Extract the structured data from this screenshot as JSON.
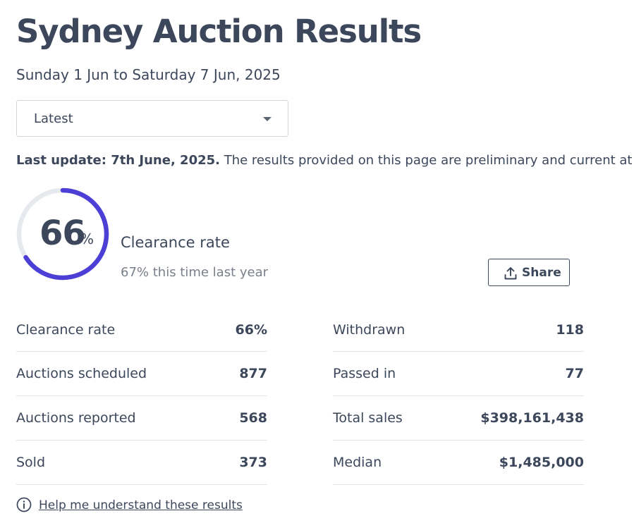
{
  "header": {
    "title": "Sydney Auction Results",
    "date_range": "Sunday 1 Jun to Saturday 7 Jun, 2025"
  },
  "period_select": {
    "selected": "Latest"
  },
  "update": {
    "bold_text": "Last update: 7th June, 2025.",
    "text": " The results provided on this page are preliminary and current at th"
  },
  "summary": {
    "clearance_value": "66",
    "clearance_unit": "%",
    "clearance_fraction": 0.66,
    "clearance_label": "Clearance rate",
    "last_year_text": "67% this time last year",
    "share_label": "Share"
  },
  "stats_left": [
    {
      "label": "Clearance rate",
      "value": "66%"
    },
    {
      "label": "Auctions scheduled",
      "value": "877"
    },
    {
      "label": "Auctions reported",
      "value": "568"
    },
    {
      "label": "Sold",
      "value": "373"
    }
  ],
  "stats_right": [
    {
      "label": "Withdrawn",
      "value": "118"
    },
    {
      "label": "Passed in",
      "value": "77"
    },
    {
      "label": "Total sales",
      "value": "$398,161,438"
    },
    {
      "label": "Median",
      "value": "$1,485,000"
    }
  ],
  "help_link": "Help me understand these results",
  "colors": {
    "accent": "#4b3fd6",
    "ring_track": "#e6e9ee",
    "text": "#3c475b"
  },
  "icons": {
    "dropdown": "chevron-down-icon",
    "share": "share-upload-icon",
    "help": "info-icon"
  }
}
